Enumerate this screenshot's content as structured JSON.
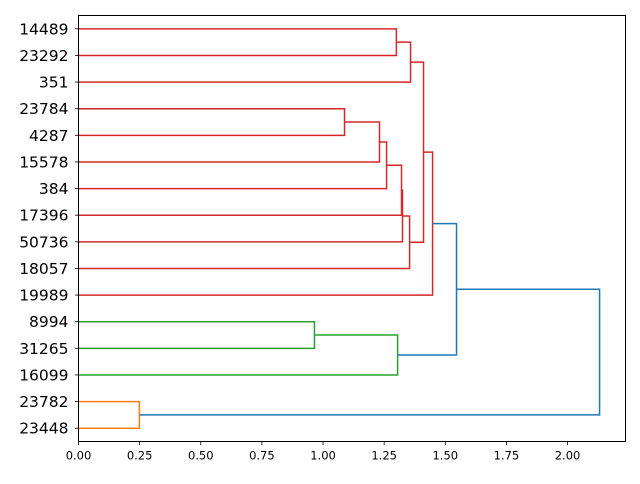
{
  "chart_data": {
    "type": "dendrogram",
    "orientation": "left",
    "title": "",
    "xlabel": "",
    "ylabel": "",
    "xlim": [
      0,
      2.237
    ],
    "xticks": [
      0,
      0.25,
      0.5,
      0.75,
      1.0,
      1.25,
      1.5,
      1.75,
      2.0
    ],
    "xtick_labels": [
      "0.00",
      "0.25",
      "0.50",
      "0.75",
      "1.00",
      "1.25",
      "1.50",
      "1.75",
      "2.00"
    ],
    "grid": false,
    "leaves": [
      "14489",
      "23292",
      "351",
      "23784",
      "4287",
      "15578",
      "384",
      "17396",
      "50736",
      "18057",
      "19989",
      "8994",
      "31265",
      "16099",
      "23782",
      "23448"
    ],
    "colors": {
      "red": "#d62728",
      "green": "#2ca02c",
      "orange": "#ff7f0e",
      "blue": "#1f77b4"
    },
    "merges": [
      {
        "id": "m0",
        "children": [
          "14489",
          "23292"
        ],
        "height": 1.3,
        "color": "red"
      },
      {
        "id": "m1",
        "children": [
          "m0",
          "351"
        ],
        "height": 1.358,
        "color": "red"
      },
      {
        "id": "m2",
        "children": [
          "23784",
          "4287"
        ],
        "height": 1.088,
        "color": "red"
      },
      {
        "id": "m3",
        "children": [
          "m2",
          "15578"
        ],
        "height": 1.231,
        "color": "red"
      },
      {
        "id": "m4",
        "children": [
          "m3",
          "384"
        ],
        "height": 1.26,
        "color": "red"
      },
      {
        "id": "m5",
        "children": [
          "m4",
          "17396"
        ],
        "height": 1.321,
        "color": "red"
      },
      {
        "id": "m6",
        "children": [
          "m5",
          "50736"
        ],
        "height": 1.325,
        "color": "red"
      },
      {
        "id": "m7",
        "children": [
          "m6",
          "18057"
        ],
        "height": 1.354,
        "color": "red"
      },
      {
        "id": "m8",
        "children": [
          "m1",
          "m7"
        ],
        "height": 1.411,
        "color": "red"
      },
      {
        "id": "m9",
        "children": [
          "m8",
          "19989"
        ],
        "height": 1.448,
        "color": "red"
      },
      {
        "id": "m10",
        "children": [
          "8994",
          "31265"
        ],
        "height": 0.965,
        "color": "green"
      },
      {
        "id": "m11",
        "children": [
          "m10",
          "16099"
        ],
        "height": 1.305,
        "color": "green"
      },
      {
        "id": "m12",
        "children": [
          "m9",
          "m11"
        ],
        "height": 1.546,
        "color": "blue"
      },
      {
        "id": "m13",
        "children": [
          "23782",
          "23448"
        ],
        "height": 0.249,
        "color": "orange"
      },
      {
        "id": "m14",
        "children": [
          "m12",
          "m13"
        ],
        "height": 2.131,
        "color": "blue"
      }
    ]
  }
}
